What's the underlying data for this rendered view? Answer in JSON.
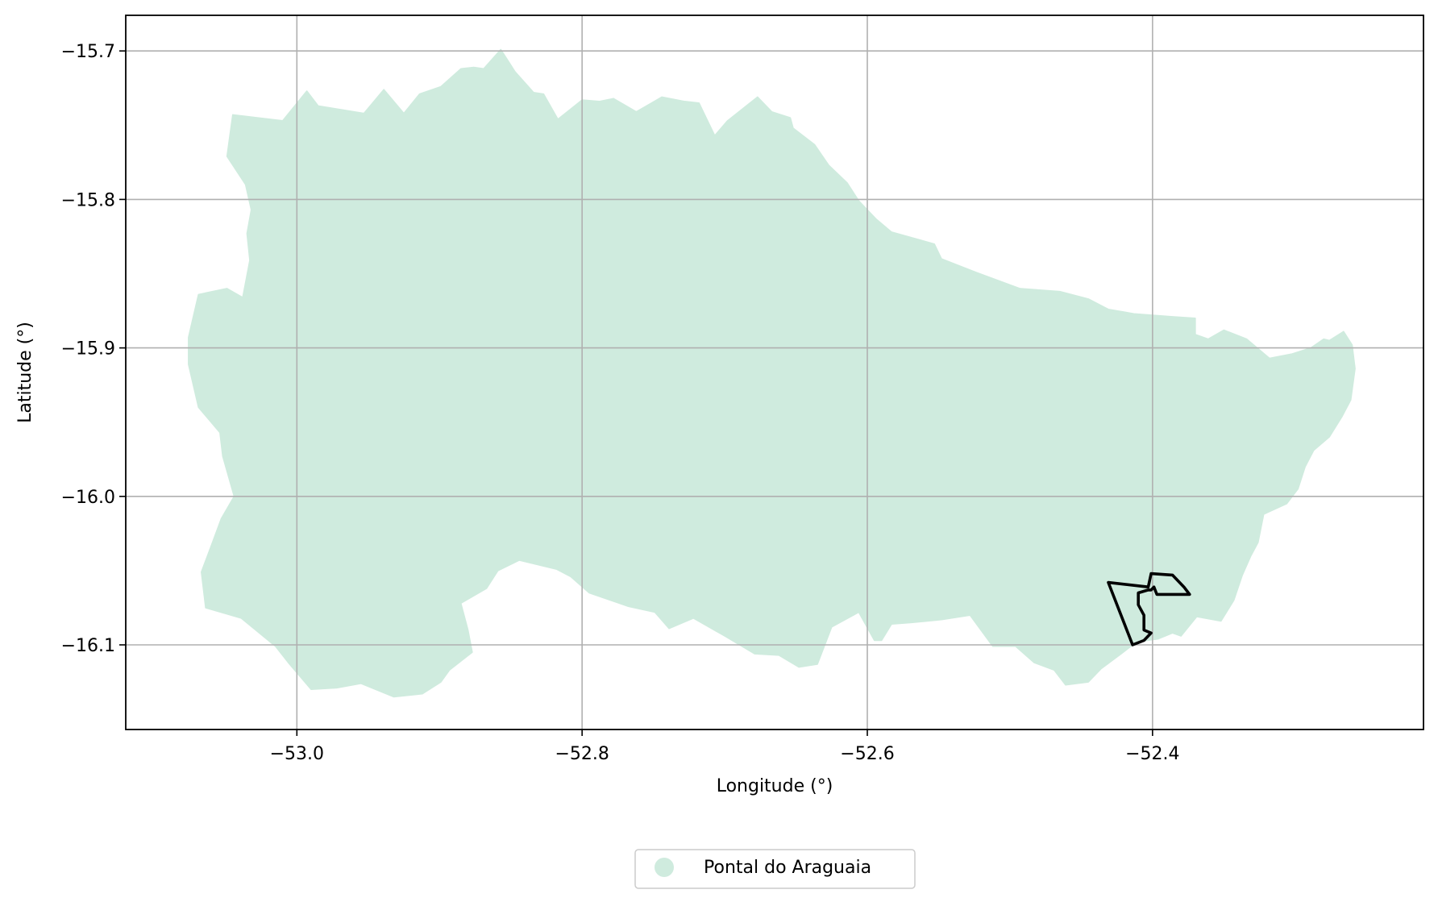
{
  "chart_data": {
    "type": "map",
    "xlabel": "Longitude (°)",
    "ylabel": "Latitude (°)",
    "xlim": [
      -53.12,
      -52.21
    ],
    "ylim": [
      -16.157,
      -15.676
    ],
    "xticks": [
      -53.0,
      -52.8,
      -52.6,
      -52.4
    ],
    "xtick_labels": [
      "−53.0",
      "−52.8",
      "−52.6",
      "−52.4"
    ],
    "yticks": [
      -15.7,
      -15.8,
      -15.9,
      -16.0,
      -16.1
    ],
    "ytick_labels": [
      "−15.7",
      "−15.8",
      "−15.9",
      "−16.0",
      "−16.1"
    ],
    "grid": true,
    "legend_position": "bottom-center",
    "legend": [
      {
        "label": "Pontal do Araguaia",
        "color": "#cfebde"
      }
    ],
    "regions": [
      {
        "name": "Pontal do Araguaia",
        "fill": "#cfebde",
        "outline": [
          [
            -53.076,
            -15.893
          ],
          [
            -53.069,
            -15.864
          ],
          [
            -53.049,
            -15.86
          ],
          [
            -53.038,
            -15.866
          ],
          [
            -53.033,
            -15.841
          ],
          [
            -53.035,
            -15.823
          ],
          [
            -53.032,
            -15.807
          ],
          [
            -53.036,
            -15.79
          ],
          [
            -53.049,
            -15.771
          ],
          [
            -53.045,
            -15.743
          ],
          [
            -53.01,
            -15.747
          ],
          [
            -52.993,
            -15.727
          ],
          [
            -52.985,
            -15.737
          ],
          [
            -52.953,
            -15.742
          ],
          [
            -52.939,
            -15.726
          ],
          [
            -52.925,
            -15.742
          ],
          [
            -52.914,
            -15.729
          ],
          [
            -52.899,
            -15.724
          ],
          [
            -52.885,
            -15.712
          ],
          [
            -52.876,
            -15.711
          ],
          [
            -52.869,
            -15.712
          ],
          [
            -52.857,
            -15.699
          ],
          [
            -52.847,
            -15.714
          ],
          [
            -52.834,
            -15.728
          ],
          [
            -52.827,
            -15.729
          ],
          [
            -52.817,
            -15.746
          ],
          [
            -52.8,
            -15.733
          ],
          [
            -52.788,
            -15.734
          ],
          [
            -52.778,
            -15.732
          ],
          [
            -52.762,
            -15.741
          ],
          [
            -52.744,
            -15.731
          ],
          [
            -52.728,
            -15.734
          ],
          [
            -52.718,
            -15.735
          ],
          [
            -52.707,
            -15.757
          ],
          [
            -52.698,
            -15.747
          ],
          [
            -52.677,
            -15.731
          ],
          [
            -52.667,
            -15.741
          ],
          [
            -52.654,
            -15.745
          ],
          [
            -52.652,
            -15.752
          ],
          [
            -52.637,
            -15.763
          ],
          [
            -52.627,
            -15.777
          ],
          [
            -52.614,
            -15.789
          ],
          [
            -52.606,
            -15.801
          ],
          [
            -52.594,
            -15.813
          ],
          [
            -52.583,
            -15.822
          ],
          [
            -52.553,
            -15.83
          ],
          [
            -52.548,
            -15.84
          ],
          [
            -52.524,
            -15.849
          ],
          [
            -52.493,
            -15.86
          ],
          [
            -52.465,
            -15.862
          ],
          [
            -52.445,
            -15.867
          ],
          [
            -52.431,
            -15.874
          ],
          [
            -52.413,
            -15.877
          ],
          [
            -52.386,
            -15.879
          ],
          [
            -52.37,
            -15.88
          ],
          [
            -52.37,
            -15.891
          ],
          [
            -52.361,
            -15.894
          ],
          [
            -52.35,
            -15.888
          ],
          [
            -52.334,
            -15.894
          ],
          [
            -52.318,
            -15.907
          ],
          [
            -52.302,
            -15.904
          ],
          [
            -52.289,
            -15.9
          ],
          [
            -52.28,
            -15.894
          ],
          [
            -52.276,
            -15.895
          ],
          [
            -52.266,
            -15.889
          ],
          [
            -52.26,
            -15.898
          ],
          [
            -52.258,
            -15.914
          ],
          [
            -52.261,
            -15.935
          ],
          [
            -52.267,
            -15.946
          ],
          [
            -52.276,
            -15.96
          ],
          [
            -52.287,
            -15.969
          ],
          [
            -52.293,
            -15.98
          ],
          [
            -52.298,
            -15.995
          ],
          [
            -52.306,
            -16.005
          ],
          [
            -52.322,
            -16.012
          ],
          [
            -52.326,
            -16.031
          ],
          [
            -52.331,
            -16.04
          ],
          [
            -52.337,
            -16.053
          ],
          [
            -52.343,
            -16.07
          ],
          [
            -52.352,
            -16.084
          ],
          [
            -52.369,
            -16.081
          ],
          [
            -52.38,
            -16.094
          ],
          [
            -52.386,
            -16.092
          ],
          [
            -52.396,
            -16.096
          ],
          [
            -52.411,
            -16.098
          ],
          [
            -52.422,
            -16.106
          ],
          [
            -52.436,
            -16.116
          ],
          [
            -52.445,
            -16.125
          ],
          [
            -52.461,
            -16.127
          ],
          [
            -52.469,
            -16.117
          ],
          [
            -52.483,
            -16.112
          ],
          [
            -52.496,
            -16.101
          ],
          [
            -52.512,
            -16.101
          ],
          [
            -52.528,
            -16.08
          ],
          [
            -52.548,
            -16.083
          ],
          [
            -52.569,
            -16.085
          ],
          [
            -52.583,
            -16.086
          ],
          [
            -52.59,
            -16.097
          ],
          [
            -52.595,
            -16.097
          ],
          [
            -52.606,
            -16.078
          ],
          [
            -52.625,
            -16.088
          ],
          [
            -52.635,
            -16.113
          ],
          [
            -52.648,
            -16.115
          ],
          [
            -52.662,
            -16.107
          ],
          [
            -52.679,
            -16.106
          ],
          [
            -52.7,
            -16.094
          ],
          [
            -52.722,
            -16.082
          ],
          [
            -52.739,
            -16.089
          ],
          [
            -52.749,
            -16.078
          ],
          [
            -52.768,
            -16.074
          ],
          [
            -52.795,
            -16.065
          ],
          [
            -52.808,
            -16.054
          ],
          [
            -52.818,
            -16.049
          ],
          [
            -52.844,
            -16.043
          ],
          [
            -52.859,
            -16.05
          ],
          [
            -52.867,
            -16.062
          ],
          [
            -52.885,
            -16.072
          ],
          [
            -52.88,
            -16.09
          ],
          [
            -52.877,
            -16.105
          ],
          [
            -52.893,
            -16.117
          ],
          [
            -52.899,
            -16.125
          ],
          [
            -52.912,
            -16.133
          ],
          [
            -52.932,
            -16.135
          ],
          [
            -52.955,
            -16.126
          ],
          [
            -52.972,
            -16.129
          ],
          [
            -52.99,
            -16.13
          ],
          [
            -53.006,
            -16.112
          ],
          [
            -53.015,
            -16.101
          ],
          [
            -53.039,
            -16.082
          ],
          [
            -53.064,
            -16.075
          ],
          [
            -53.067,
            -16.051
          ],
          [
            -53.06,
            -16.033
          ],
          [
            -53.053,
            -16.015
          ],
          [
            -53.044,
            -16.0
          ],
          [
            -53.052,
            -15.973
          ],
          [
            -53.054,
            -15.957
          ],
          [
            -53.069,
            -15.94
          ],
          [
            -53.076,
            -15.911
          ],
          [
            -53.076,
            -15.893
          ]
        ]
      }
    ],
    "highlight_outlines": [
      {
        "stroke": "#000000",
        "outline": [
          [
            -52.431,
            -16.058
          ],
          [
            -52.403,
            -16.061
          ],
          [
            -52.401,
            -16.052
          ],
          [
            -52.386,
            -16.053
          ],
          [
            -52.378,
            -16.061
          ],
          [
            -52.374,
            -16.066
          ],
          [
            -52.397,
            -16.066
          ],
          [
            -52.399,
            -16.061
          ],
          [
            -52.401,
            -16.063
          ],
          [
            -52.403,
            -16.063
          ],
          [
            -52.41,
            -16.065
          ],
          [
            -52.41,
            -16.073
          ],
          [
            -52.406,
            -16.08
          ],
          [
            -52.406,
            -16.09
          ],
          [
            -52.401,
            -16.092
          ],
          [
            -52.406,
            -16.097
          ],
          [
            -52.414,
            -16.1
          ],
          [
            -52.431,
            -16.058
          ]
        ]
      }
    ]
  }
}
